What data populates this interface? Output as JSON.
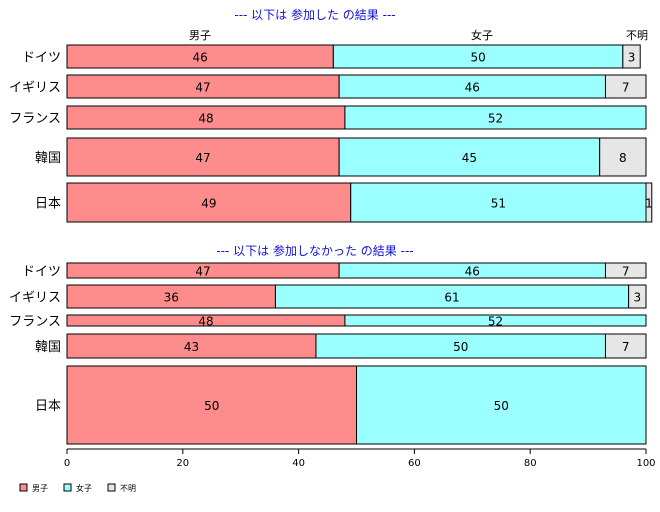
{
  "chart_data": {
    "type": "bar",
    "orientation": "horizontal",
    "stacked": true,
    "xlim": [
      0,
      100
    ],
    "x_ticks": [
      "0",
      "20",
      "40",
      "60",
      "80",
      "100"
    ],
    "series_names": [
      "男子",
      "女子",
      "不明"
    ],
    "colors": {
      "男子": "#ff8c8c",
      "女子": "#9cffff",
      "不明": "#e6e6e6"
    },
    "column_headers": [
      "男子",
      "女子",
      "不明"
    ],
    "legend": {
      "position": "bottom-left",
      "items": [
        "男子",
        "女子",
        "不明"
      ]
    },
    "panels": [
      {
        "title": "--- 以下は 参加した の結果 ---",
        "categories": [
          "ドイツ",
          "イギリス",
          "フランス",
          "韓国",
          "日本"
        ],
        "series": [
          {
            "name": "男子",
            "values": [
              46,
              47,
              48,
              47,
              49
            ]
          },
          {
            "name": "女子",
            "values": [
              50,
              46,
              52,
              45,
              51
            ]
          },
          {
            "name": "不明",
            "values": [
              3,
              7,
              0,
              8,
              1
            ]
          }
        ],
        "labels": [
          [
            "46",
            "50",
            "3"
          ],
          [
            "47",
            "46",
            "7"
          ],
          [
            "48",
            "52",
            ""
          ],
          [
            "47",
            "45",
            "8"
          ],
          [
            "49",
            "51",
            "1"
          ]
        ]
      },
      {
        "title": "--- 以下は 参加しなかった の結果 ---",
        "categories": [
          "ドイツ",
          "イギリス",
          "フランス",
          "韓国",
          "日本"
        ],
        "series": [
          {
            "name": "男子",
            "values": [
              47,
              36,
              48,
              43,
              50
            ]
          },
          {
            "name": "女子",
            "values": [
              46,
              61,
              52,
              50,
              50
            ]
          },
          {
            "name": "不明",
            "values": [
              7,
              3,
              0,
              7,
              0
            ]
          }
        ],
        "labels": [
          [
            "47",
            "46",
            "7"
          ],
          [
            "36",
            "61",
            "3"
          ],
          [
            "48",
            "52",
            ""
          ],
          [
            "43",
            "50",
            "7"
          ],
          [
            "50",
            "50",
            ""
          ]
        ]
      }
    ]
  }
}
